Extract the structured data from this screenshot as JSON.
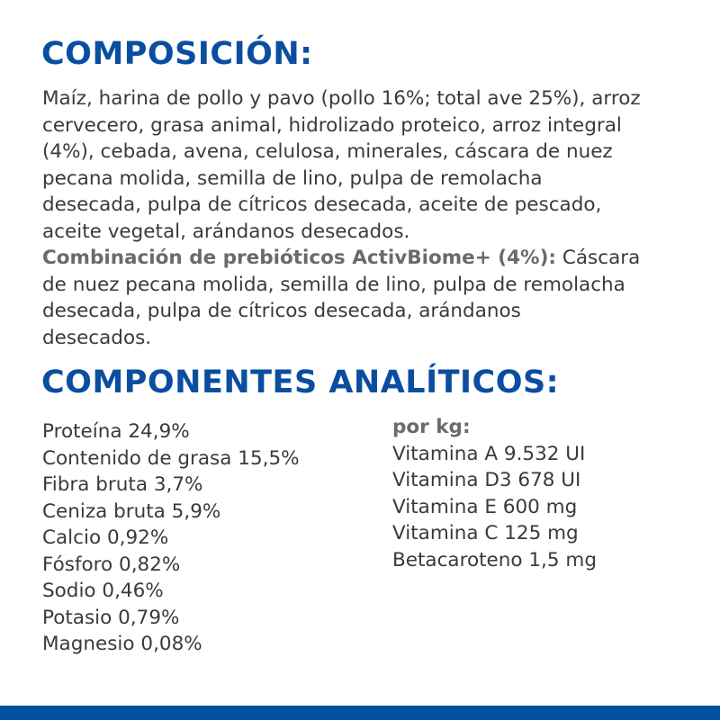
{
  "composition": {
    "title": "COMPOSICIÓN:",
    "lines": [
      "Maíz, harina de pollo y pavo (pollo 16%; total ave 25%), arroz",
      "cervecero, grasa animal, hidrolizado proteico, arroz integral",
      "(4%), cebada, avena, celulosa, minerales, cáscara de nuez",
      "pecana molida, semilla de lino, pulpa de remolacha",
      "desecada, pulpa de cítricos desecada, aceite de pescado,",
      "aceite vegetal, arándanos desecados."
    ],
    "prebiotic_label": "Combinación de prebióticos ActivBiome+ (4%):",
    "prebiotic_lines": [
      " Cáscara",
      "de nuez pecana molida, semilla de lino, pulpa de remolacha",
      "desecada, pulpa de cítricos desecada, arándanos",
      "desecados."
    ]
  },
  "analytics": {
    "title": "COMPONENTES ANALÍTICOS:",
    "left": [
      "Proteína 24,9%",
      "Contenido de grasa 15,5%",
      "Fibra bruta 3,7%",
      "Ceniza bruta 5,9%",
      "Calcio 0,92%",
      "Fósforo 0,82%",
      "Sodio 0,46%",
      "Potasio 0,79%",
      "Magnesio 0,08%"
    ],
    "right_header": "por kg:",
    "right": [
      "Vitamina A 9.532 UI",
      "Vitamina D3 678 UI",
      "Vitamina E 600 mg",
      "Vitamina C 125 mg",
      "Betacaroteno 1,5 mg"
    ]
  },
  "colors": {
    "heading": "#0a4ea0",
    "bar": "#0052a0",
    "text": "#3a3a3a"
  }
}
